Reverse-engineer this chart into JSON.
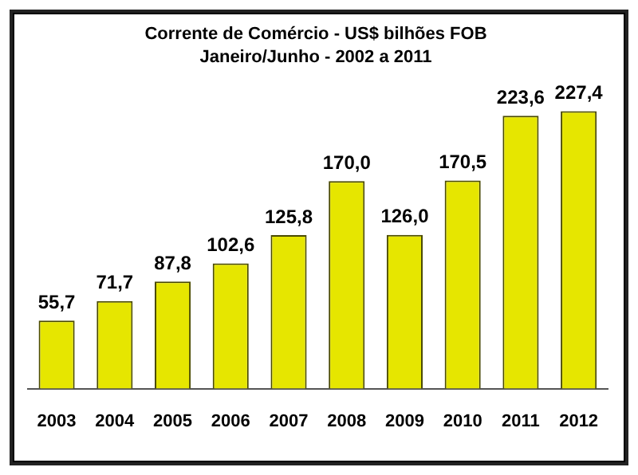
{
  "chart_data": {
    "type": "bar",
    "title": "Corrente de Comércio - US$ bilhões FOB",
    "subtitle": "Janeiro/Junho - 2002 a 2011",
    "categories": [
      "2003",
      "2004",
      "2005",
      "2006",
      "2007",
      "2008",
      "2009",
      "2010",
      "2011",
      "2012"
    ],
    "values": [
      55.7,
      71.7,
      87.8,
      102.6,
      125.8,
      170.0,
      126.0,
      170.5,
      223.6,
      227.4
    ],
    "value_labels": [
      "55,7",
      "71,7",
      "87,8",
      "102,6",
      "125,8",
      "170,0",
      "126,0",
      "170,5",
      "223,6",
      "227,4"
    ],
    "color": "#e6e600",
    "data_labels": true,
    "grid": false,
    "legend": false
  }
}
